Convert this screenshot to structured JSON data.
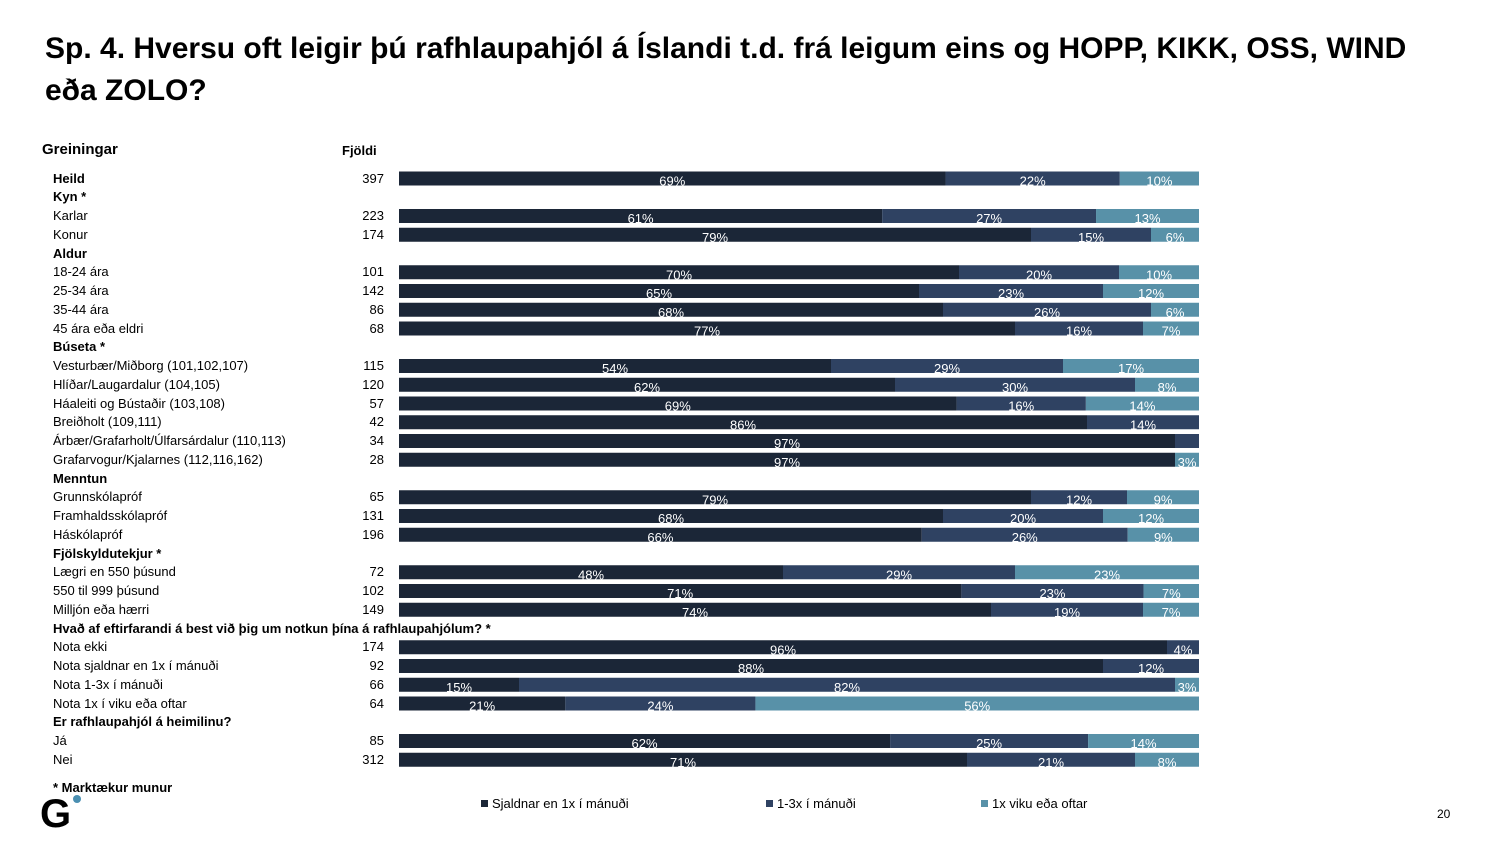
{
  "title": "Sp. 4. Hversu oft leigir þú rafhlaupahjól á Íslandi t.d. frá leigum eins og HOPP, KIKK, OSS, WIND eða ZOLO?",
  "col_head_label": "Greiningar",
  "col_head_n": "Fjöldi",
  "footnote": "* Marktækur munur",
  "page_number": "20",
  "logo_letter": "G",
  "colors": {
    "c1": "#1b2637",
    "c2": "#2f4262",
    "c3": "#5891a8",
    "dot": "#4a8fb1"
  },
  "chart_data": {
    "type": "bar",
    "stacked": true,
    "orientation": "horizontal",
    "series_names": [
      "Sjaldnar en 1x í mánuði",
      "1-3x í mánuði",
      "1x viku eða oftar"
    ],
    "rows": [
      {
        "label": "Heild",
        "bold": true,
        "n": "397",
        "values": [
          69,
          22,
          10
        ],
        "labels": [
          "69%",
          "22%",
          "10%"
        ]
      },
      {
        "label": "Kyn *",
        "bold": true
      },
      {
        "label": "Karlar",
        "n": "223",
        "values": [
          61,
          27,
          13
        ],
        "labels": [
          "61%",
          "27%",
          "13%"
        ]
      },
      {
        "label": "Konur",
        "n": "174",
        "values": [
          79,
          15,
          6
        ],
        "labels": [
          "79%",
          "15%",
          "6%"
        ]
      },
      {
        "label": "Aldur",
        "bold": true
      },
      {
        "label": "18-24 ára",
        "n": "101",
        "values": [
          70,
          20,
          10
        ],
        "labels": [
          "70%",
          "20%",
          "10%"
        ]
      },
      {
        "label": "25-34 ára",
        "n": "142",
        "values": [
          65,
          23,
          12
        ],
        "labels": [
          "65%",
          "23%",
          "12%"
        ]
      },
      {
        "label": "35-44 ára",
        "n": "86",
        "values": [
          68,
          26,
          6
        ],
        "labels": [
          "68%",
          "26%",
          "6%"
        ]
      },
      {
        "label": "45 ára eða eldri",
        "n": "68",
        "values": [
          77,
          16,
          7
        ],
        "labels": [
          "77%",
          "16%",
          "7%"
        ]
      },
      {
        "label": "Búseta *",
        "bold": true
      },
      {
        "label": "Vesturbær/Miðborg (101,102,107)",
        "n": "115",
        "values": [
          54,
          29,
          17
        ],
        "labels": [
          "54%",
          "29%",
          "17%"
        ]
      },
      {
        "label": "Hlíðar/Laugardalur (104,105)",
        "n": "120",
        "values": [
          62,
          30,
          8
        ],
        "labels": [
          "62%",
          "30%",
          "8%"
        ]
      },
      {
        "label": "Háaleiti og Bústaðir (103,108)",
        "n": "57",
        "values": [
          69,
          16,
          14
        ],
        "labels": [
          "69%",
          "16%",
          "14%"
        ]
      },
      {
        "label": "Breiðholt (109,111)",
        "n": "42",
        "values": [
          86,
          14,
          0
        ],
        "labels": [
          "86%",
          "14%",
          ""
        ]
      },
      {
        "label": "Árbær/Grafarholt/Úlfarsárdalur (110,113)",
        "n": "34",
        "values": [
          97,
          3,
          0
        ],
        "labels": [
          "97%",
          "",
          ""
        ]
      },
      {
        "label": "Grafarvogur/Kjalarnes (112,116,162)",
        "n": "28",
        "values": [
          97,
          0,
          3
        ],
        "labels": [
          "97%",
          "",
          "3%"
        ]
      },
      {
        "label": "Menntun",
        "bold": true
      },
      {
        "label": "Grunnskólapróf",
        "n": "65",
        "values": [
          79,
          12,
          9
        ],
        "labels": [
          "79%",
          "12%",
          "9%"
        ]
      },
      {
        "label": "Framhaldsskólapróf",
        "n": "131",
        "values": [
          68,
          20,
          12
        ],
        "labels": [
          "68%",
          "20%",
          "12%"
        ]
      },
      {
        "label": "Háskólapróf",
        "n": "196",
        "values": [
          66,
          26,
          9
        ],
        "labels": [
          "66%",
          "26%",
          "9%"
        ]
      },
      {
        "label": "Fjölskyldutekjur *",
        "bold": true
      },
      {
        "label": "Lægri en 550 þúsund",
        "n": "72",
        "values": [
          48,
          29,
          23
        ],
        "labels": [
          "48%",
          "29%",
          "23%"
        ]
      },
      {
        "label": "550 til 999 þúsund",
        "n": "102",
        "values": [
          71,
          23,
          7
        ],
        "labels": [
          "71%",
          "23%",
          "7%"
        ]
      },
      {
        "label": "Milljón eða hærri",
        "n": "149",
        "values": [
          74,
          19,
          7
        ],
        "labels": [
          "74%",
          "19%",
          "7%"
        ]
      },
      {
        "label": "Hvað af eftirfarandi á best við þig um notkun þína á rafhlaupahjólum? *",
        "bold": true
      },
      {
        "label": "Nota ekki",
        "n": "174",
        "values": [
          96,
          4,
          0
        ],
        "labels": [
          "96%",
          "4%",
          ""
        ]
      },
      {
        "label": "Nota sjaldnar en 1x í mánuði",
        "n": "92",
        "values": [
          88,
          12,
          0
        ],
        "labels": [
          "88%",
          "12%",
          ""
        ]
      },
      {
        "label": "Nota 1-3x í mánuði",
        "n": "66",
        "values": [
          15,
          82,
          3
        ],
        "labels": [
          "15%",
          "82%",
          "3%"
        ]
      },
      {
        "label": "Nota 1x í viku eða oftar",
        "n": "64",
        "values": [
          21,
          24,
          56
        ],
        "labels": [
          "21%",
          "24%",
          "56%"
        ]
      },
      {
        "label": "Er rafhlaupahjól á heimilinu?",
        "bold": true
      },
      {
        "label": "Já",
        "n": "85",
        "values": [
          62,
          25,
          14
        ],
        "labels": [
          "62%",
          "25%",
          "14%"
        ]
      },
      {
        "label": "Nei",
        "n": "312",
        "values": [
          71,
          21,
          8
        ],
        "labels": [
          "71%",
          "21%",
          "8%"
        ]
      }
    ]
  }
}
